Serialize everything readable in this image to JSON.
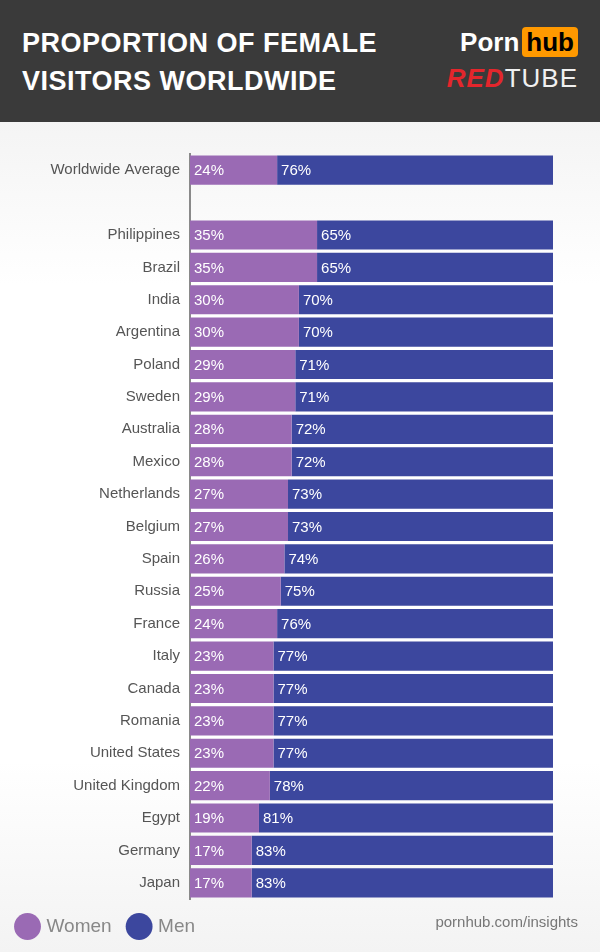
{
  "logos": [
    [
      "Porn",
      "hub"
    ],
    [
      "RED",
      "TUBE"
    ]
  ],
  "source": "pornhub.com/insights",
  "chart_data": {
    "type": "bar",
    "title": "PROPORTION OF FEMALE VISITORS WORLDWIDE",
    "orientation": "horizontal",
    "stacked": true,
    "data_labels": true,
    "grid": false,
    "legend": "bottom-left",
    "tick_labels": "y",
    "xlim": [
      0,
      100
    ],
    "categories": [
      "Worldwide Average",
      null,
      "Philippines",
      "Brazil",
      "India",
      "Argentina",
      "Poland",
      "Sweden",
      "Australia",
      "Mexico",
      "Netherlands",
      "Belgium",
      "Spain",
      "Russia",
      "France",
      "Italy",
      "Canada",
      "Romania",
      "United States",
      "United Kingdom",
      "Egypt",
      "Germany",
      "Japan"
    ],
    "series": [
      {
        "name": "Women",
        "color": "#9a6ab4",
        "values": [
          24,
          null,
          35,
          35,
          30,
          30,
          29,
          29,
          28,
          28,
          27,
          27,
          26,
          25,
          24,
          23,
          23,
          23,
          23,
          22,
          19,
          17,
          17
        ],
        "value_labels": [
          "24%",
          null,
          "35%",
          "35%",
          "30%",
          "30%",
          "29%",
          "29%",
          "28%",
          "28%",
          "27%",
          "27%",
          "26%",
          "25%",
          "24%",
          "23%",
          "23%",
          "23%",
          "23%",
          "22%",
          "19%",
          "17%",
          "17%"
        ]
      },
      {
        "name": "Men",
        "color": "#3c479e",
        "values": [
          76,
          null,
          65,
          65,
          70,
          70,
          71,
          71,
          72,
          72,
          73,
          73,
          74,
          75,
          76,
          77,
          77,
          77,
          77,
          78,
          81,
          83,
          83
        ],
        "value_labels": [
          "76%",
          null,
          "65%",
          "65%",
          "70%",
          "70%",
          "71%",
          "71%",
          "72%",
          "72%",
          "73%",
          "73%",
          "74%",
          "75%",
          "76%",
          "77%",
          "77%",
          "77%",
          "77%",
          "78%",
          "81%",
          "83%",
          "83%"
        ]
      }
    ]
  }
}
